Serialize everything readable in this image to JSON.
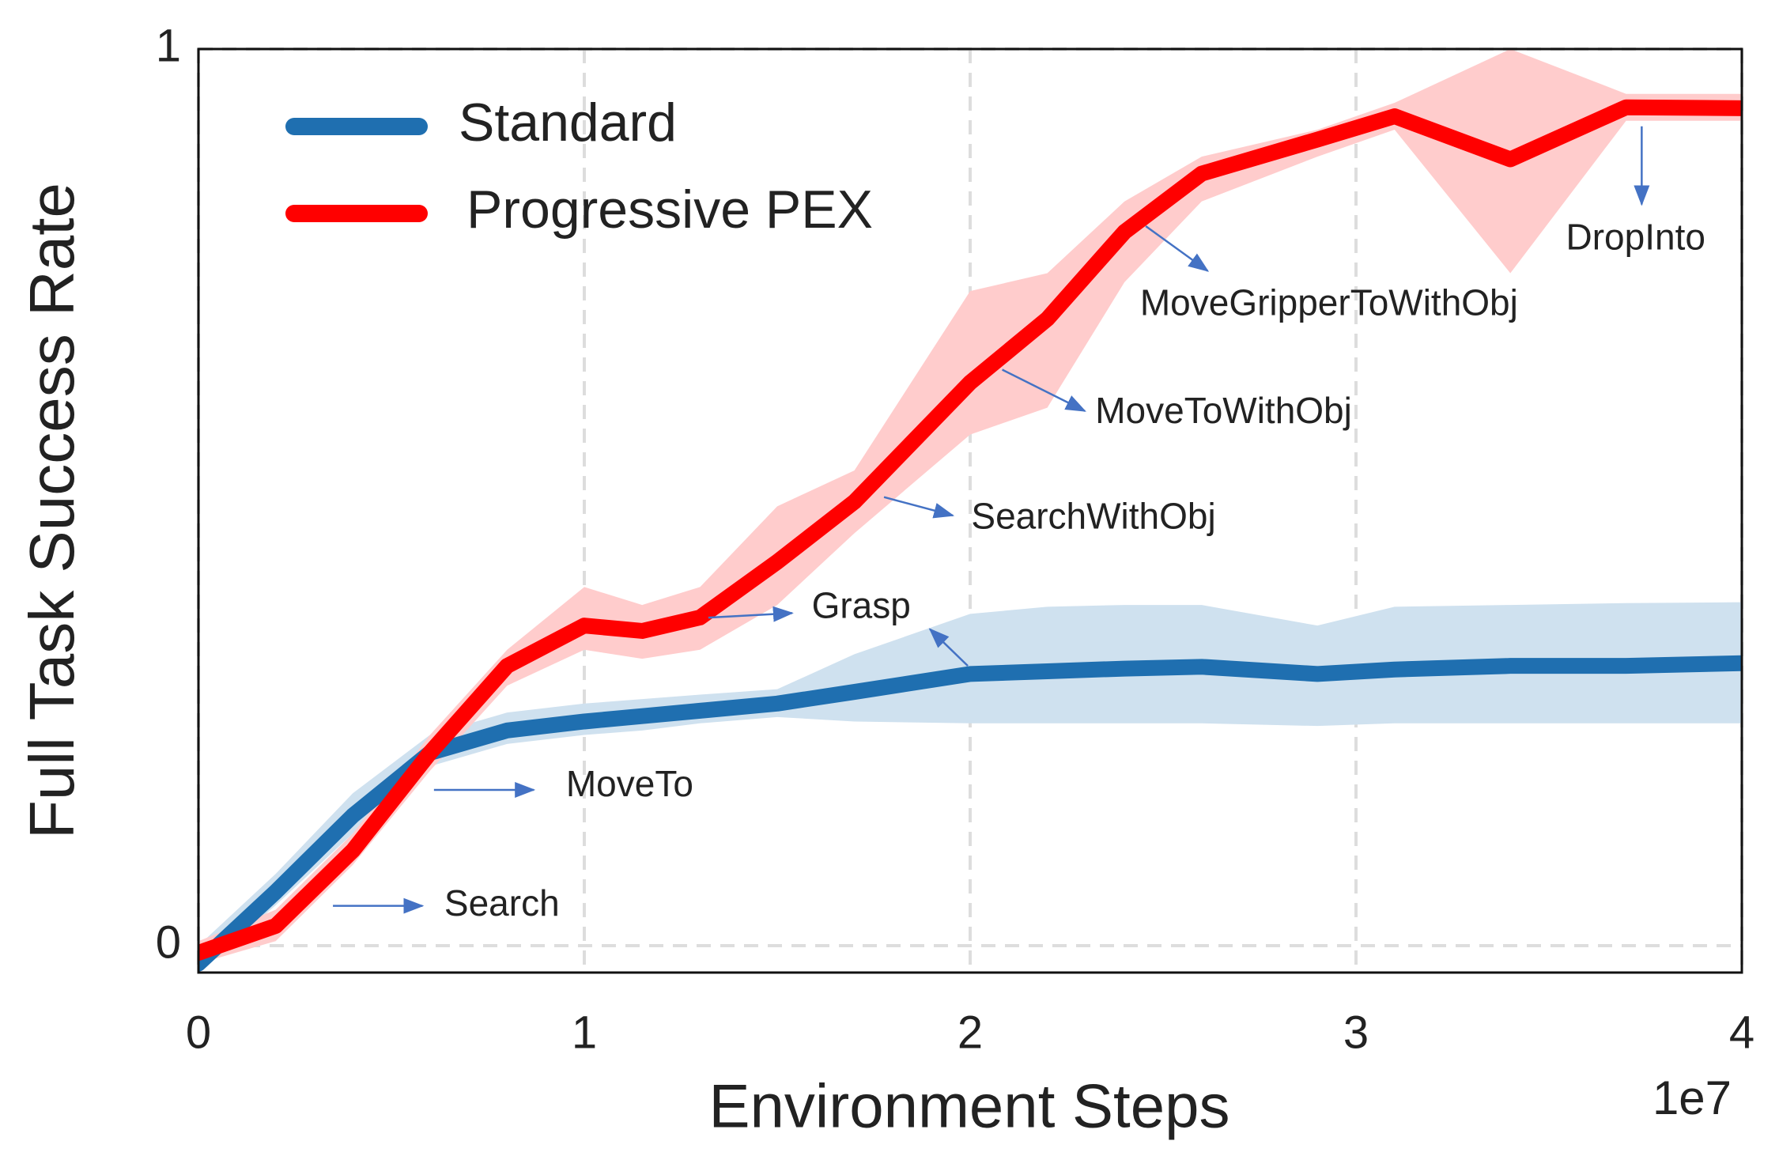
{
  "chart_data": {
    "type": "line",
    "xlabel": "Environment Steps",
    "ylabel": "Full Task Success Rate",
    "x_offset_label": "1e7",
    "x": [
      0,
      0.2,
      0.4,
      0.6,
      0.8,
      1.0,
      1.15,
      1.3,
      1.5,
      1.7,
      2.0,
      2.2,
      2.4,
      2.6,
      2.9,
      3.1,
      3.4,
      3.7,
      4.0
    ],
    "series": [
      {
        "name": "Standard",
        "color": "#1f6fb0",
        "band_color": "#cfe1ef",
        "values": [
          -0.02,
          0.06,
          0.145,
          0.215,
          0.24,
          0.25,
          0.256,
          0.262,
          0.27,
          0.283,
          0.303,
          0.306,
          0.309,
          0.311,
          0.303,
          0.308,
          0.312,
          0.312,
          0.315
        ],
        "upper": [
          0,
          0.08,
          0.17,
          0.235,
          0.26,
          0.27,
          0.275,
          0.28,
          0.286,
          0.325,
          0.37,
          0.378,
          0.38,
          0.38,
          0.357,
          0.378,
          0.38,
          0.382,
          0.383
        ],
        "lower": [
          -0.03,
          0.045,
          0.125,
          0.2,
          0.225,
          0.235,
          0.24,
          0.248,
          0.255,
          0.25,
          0.248,
          0.248,
          0.248,
          0.248,
          0.245,
          0.248,
          0.248,
          0.248,
          0.248
        ]
      },
      {
        "name": "Progressive PEX",
        "color": "#ff0000",
        "band_color": "#ffcccc",
        "values": [
          -0.008,
          0.022,
          0.106,
          0.215,
          0.312,
          0.357,
          0.351,
          0.366,
          0.428,
          0.495,
          0.628,
          0.699,
          0.796,
          0.861,
          0.899,
          0.925,
          0.877,
          0.935,
          0.934
        ],
        "upper": [
          0.005,
          0.04,
          0.125,
          0.235,
          0.33,
          0.4,
          0.38,
          0.4,
          0.49,
          0.53,
          0.73,
          0.75,
          0.83,
          0.88,
          0.91,
          0.94,
          1.0,
          0.95,
          0.95
        ],
        "lower": [
          -0.02,
          0.005,
          0.09,
          0.195,
          0.29,
          0.33,
          0.32,
          0.33,
          0.38,
          0.46,
          0.57,
          0.6,
          0.74,
          0.83,
          0.88,
          0.91,
          0.75,
          0.92,
          0.92
        ]
      }
    ],
    "annotations": [
      "Search",
      "MoveTo",
      "Grasp",
      "SearchWithObj",
      "MoveToWithObj",
      "MoveGripperToWithObj",
      "DropInto"
    ],
    "xlim": [
      0,
      4
    ],
    "xticks": [
      0,
      1,
      2,
      3,
      4
    ],
    "ylim": [
      -0.03,
      1.0
    ],
    "yticks": [
      0,
      1
    ],
    "grid": true,
    "legend": "upper left"
  }
}
